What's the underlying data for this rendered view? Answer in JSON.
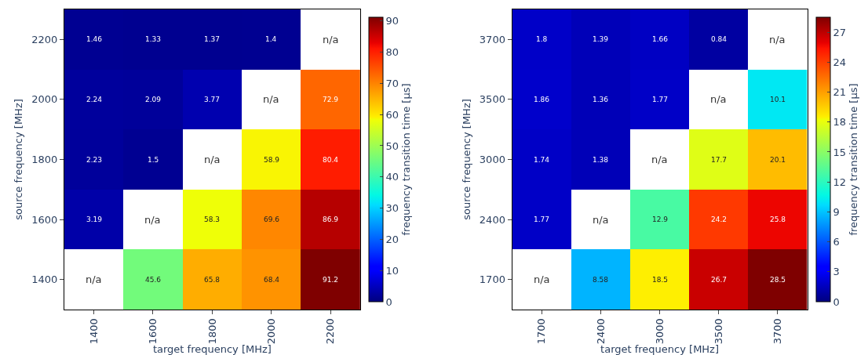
{
  "chart_data": [
    {
      "type": "heatmap",
      "xlabel": "target frequency [MHz]",
      "ylabel": "source frequency [MHz]",
      "clabel": "frequency transition time [µs]",
      "categories": [
        "1400",
        "1600",
        "1800",
        "2000",
        "2200"
      ],
      "y_categories": [
        "2200",
        "2000",
        "1800",
        "1600",
        "1400"
      ],
      "cells": [
        [
          1.46,
          1.33,
          1.37,
          1.4,
          null
        ],
        [
          2.24,
          2.09,
          3.77,
          null,
          72.9
        ],
        [
          2.23,
          1.5,
          null,
          58.9,
          80.4
        ],
        [
          3.19,
          null,
          58.3,
          69.6,
          86.9
        ],
        [
          null,
          45.6,
          65.8,
          68.4,
          91.2
        ]
      ],
      "cell_labels": [
        [
          "1.46",
          "1.33",
          "1.37",
          "1.4",
          "n/a"
        ],
        [
          "2.24",
          "2.09",
          "3.77",
          "n/a",
          "72.9"
        ],
        [
          "2.23",
          "1.5",
          "n/a",
          "58.9",
          "80.4"
        ],
        [
          "3.19",
          "n/a",
          "58.3",
          "69.6",
          "86.9"
        ],
        [
          "n/a",
          "45.6",
          "65.8",
          "68.4",
          "91.2"
        ]
      ],
      "clim": [
        0,
        91.2
      ],
      "cticks": [
        0,
        10,
        20,
        30,
        40,
        50,
        60,
        70,
        80,
        90
      ]
    },
    {
      "type": "heatmap",
      "xlabel": "target frequency [MHz]",
      "ylabel": "source frequency [MHz]",
      "clabel": "frequency transition time [µs]",
      "categories": [
        "1700",
        "2400",
        "3000",
        "3500",
        "3700"
      ],
      "y_categories": [
        "3700",
        "3500",
        "3000",
        "2400",
        "1700"
      ],
      "cells": [
        [
          1.8,
          1.39,
          1.66,
          0.84,
          null
        ],
        [
          1.86,
          1.36,
          1.77,
          null,
          10.1
        ],
        [
          1.74,
          1.38,
          null,
          17.7,
          20.1
        ],
        [
          1.77,
          null,
          12.9,
          24.2,
          25.8
        ],
        [
          null,
          8.58,
          18.5,
          26.7,
          28.5
        ]
      ],
      "cell_labels": [
        [
          "1.8",
          "1.39",
          "1.66",
          "0.84",
          "n/a"
        ],
        [
          "1.86",
          "1.36",
          "1.77",
          "n/a",
          "10.1"
        ],
        [
          "1.74",
          "1.38",
          "n/a",
          "17.7",
          "20.1"
        ],
        [
          "1.77",
          "n/a",
          "12.9",
          "24.2",
          "25.8"
        ],
        [
          "n/a",
          "8.58",
          "18.5",
          "26.7",
          "28.5"
        ]
      ],
      "clim": [
        0,
        28.5
      ],
      "cticks": [
        0,
        3,
        6,
        9,
        12,
        15,
        18,
        21,
        24,
        27
      ]
    }
  ]
}
